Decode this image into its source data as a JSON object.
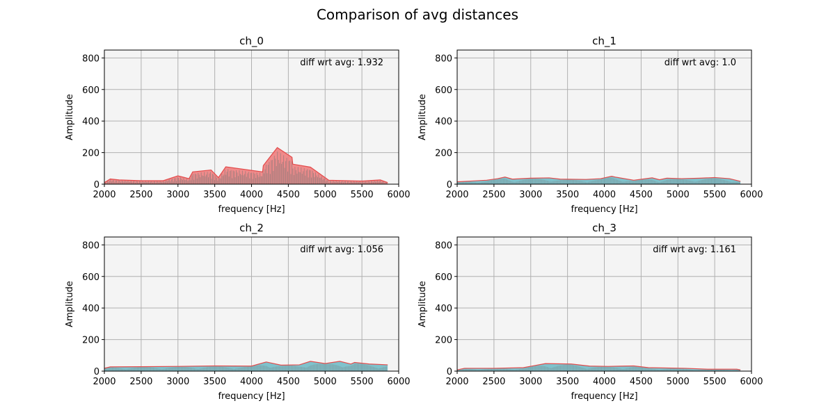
{
  "figure": {
    "title": "Comparison of avg distances",
    "colors": {
      "plot_bg": "#f4f4f4",
      "grid": "#b0b0b0",
      "envelope": "#e24a4a",
      "envelope_fill": "#f08080",
      "fill_teal": "#6ab8c4",
      "fill_dark": "#777777"
    }
  },
  "chart_data": [
    {
      "type": "area",
      "title": "ch_0",
      "xlabel": "frequency [Hz]",
      "ylabel": "Amplitude",
      "xlim": [
        2000,
        6000
      ],
      "ylim": [
        0,
        850
      ],
      "xticks": [
        2000,
        2500,
        3000,
        3500,
        4000,
        4500,
        5000,
        5500,
        6000
      ],
      "yticks": [
        0,
        200,
        400,
        600,
        800
      ],
      "grid": true,
      "annotation": "diff wrt avg: 1.932",
      "fill_style": "red",
      "series": [
        {
          "x": [
            2000,
            2080,
            2200,
            2500,
            2800,
            3000,
            3150,
            3200,
            3450,
            3550,
            3650,
            4150,
            4160,
            4350,
            4550,
            4560,
            4800,
            5050,
            5500,
            5750,
            5850
          ],
          "values": [
            10,
            33,
            27,
            22,
            22,
            53,
            35,
            78,
            90,
            42,
            110,
            78,
            118,
            232,
            170,
            127,
            108,
            25,
            20,
            27,
            10
          ]
        }
      ]
    },
    {
      "type": "area",
      "title": "ch_1",
      "xlabel": "frequency [Hz]",
      "ylabel": "Amplitude",
      "xlim": [
        2000,
        6000
      ],
      "ylim": [
        0,
        850
      ],
      "xticks": [
        2000,
        2500,
        3000,
        3500,
        4000,
        4500,
        5000,
        5500,
        6000
      ],
      "yticks": [
        0,
        200,
        400,
        600,
        800
      ],
      "grid": true,
      "annotation": "diff wrt avg: 1.0",
      "fill_style": "teal",
      "series": [
        {
          "x": [
            2000,
            2200,
            2400,
            2550,
            2650,
            2750,
            3000,
            3250,
            3400,
            3750,
            3950,
            4100,
            4150,
            4400,
            4650,
            4750,
            4850,
            5050,
            5300,
            5500,
            5700,
            5850
          ],
          "values": [
            15,
            20,
            25,
            35,
            45,
            32,
            38,
            40,
            32,
            30,
            35,
            50,
            45,
            25,
            40,
            28,
            38,
            35,
            38,
            42,
            35,
            18
          ]
        }
      ]
    },
    {
      "type": "area",
      "title": "ch_2",
      "xlabel": "frequency [Hz]",
      "ylabel": "Amplitude",
      "xlim": [
        2000,
        6000
      ],
      "ylim": [
        0,
        850
      ],
      "xticks": [
        2000,
        2500,
        3000,
        3500,
        4000,
        4500,
        5000,
        5500,
        6000
      ],
      "yticks": [
        0,
        200,
        400,
        600,
        800
      ],
      "grid": true,
      "annotation": "diff wrt avg: 1.056",
      "fill_style": "teal",
      "series": [
        {
          "x": [
            2000,
            2080,
            2500,
            3000,
            3500,
            4000,
            4200,
            4400,
            4650,
            4800,
            5000,
            5200,
            5350,
            5400,
            5600,
            5850
          ],
          "values": [
            18,
            27,
            28,
            30,
            33,
            32,
            58,
            38,
            40,
            62,
            48,
            62,
            45,
            55,
            45,
            40
          ]
        }
      ]
    },
    {
      "type": "area",
      "title": "ch_3",
      "xlabel": "frequency [Hz]",
      "ylabel": "Amplitude",
      "xlim": [
        2000,
        6000
      ],
      "ylim": [
        0,
        850
      ],
      "xticks": [
        2000,
        2500,
        3000,
        3500,
        4000,
        4500,
        5000,
        5500,
        6000
      ],
      "yticks": [
        0,
        200,
        400,
        600,
        800
      ],
      "grid": true,
      "annotation": "diff wrt avg: 1.161",
      "fill_style": "teal",
      "series": [
        {
          "x": [
            2000,
            2100,
            2500,
            2900,
            3200,
            3550,
            3800,
            4050,
            4400,
            4600,
            5100,
            5400,
            5800,
            5850
          ],
          "values": [
            8,
            18,
            18,
            22,
            48,
            45,
            32,
            30,
            33,
            22,
            18,
            12,
            12,
            8
          ]
        }
      ]
    }
  ]
}
